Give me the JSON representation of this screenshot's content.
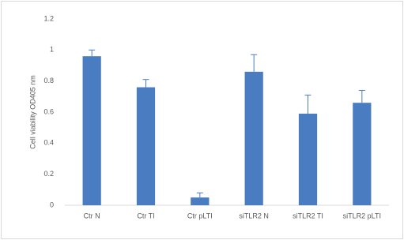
{
  "chart_data": {
    "type": "bar",
    "ylabel": "Cell viability OD405 nm",
    "categories": [
      "Ctr N",
      "Ctr TI",
      "Ctr pLTI",
      "siTLR2 N",
      "siTLR2 TI",
      "siTLR2 pLTI"
    ],
    "values": [
      0.96,
      0.76,
      0.05,
      0.86,
      0.59,
      0.66
    ],
    "errors": [
      0.04,
      0.05,
      0.03,
      0.11,
      0.12,
      0.08
    ],
    "color": "#4a7cc1",
    "ylim": [
      0,
      1.2
    ],
    "yticks": [
      0,
      0.2,
      0.4,
      0.6,
      0.8,
      1,
      1.2
    ],
    "grid": false
  }
}
